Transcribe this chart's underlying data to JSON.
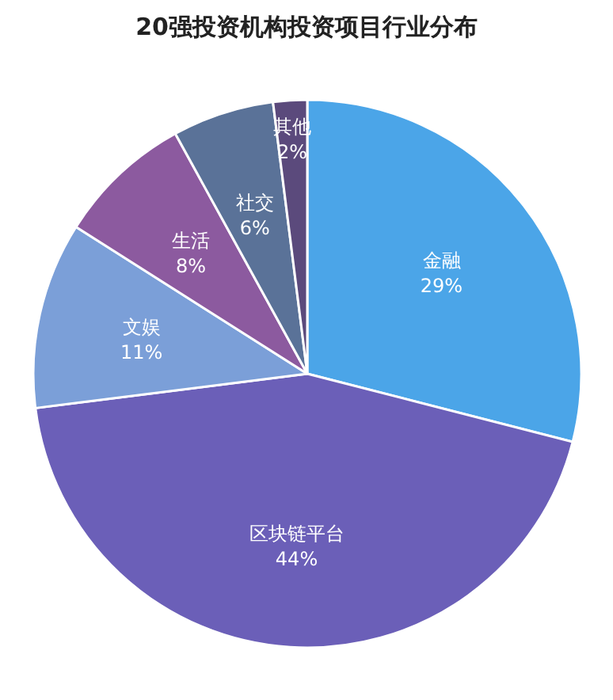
{
  "chart_data": {
    "type": "pie",
    "title": "20强投资机构投资项目行业分布",
    "categories": [
      "金融",
      "区块链平台",
      "文娱",
      "生活",
      "社交",
      "其他"
    ],
    "values": [
      29,
      44,
      11,
      8,
      6,
      2
    ],
    "value_labels": [
      "29%",
      "44%",
      "11%",
      "8%",
      "6%",
      "2%"
    ],
    "colors": [
      "#4ba5e8",
      "#6b5fb8",
      "#7b9fd8",
      "#8c5a9f",
      "#5a7298",
      "#5b4a7c"
    ]
  }
}
